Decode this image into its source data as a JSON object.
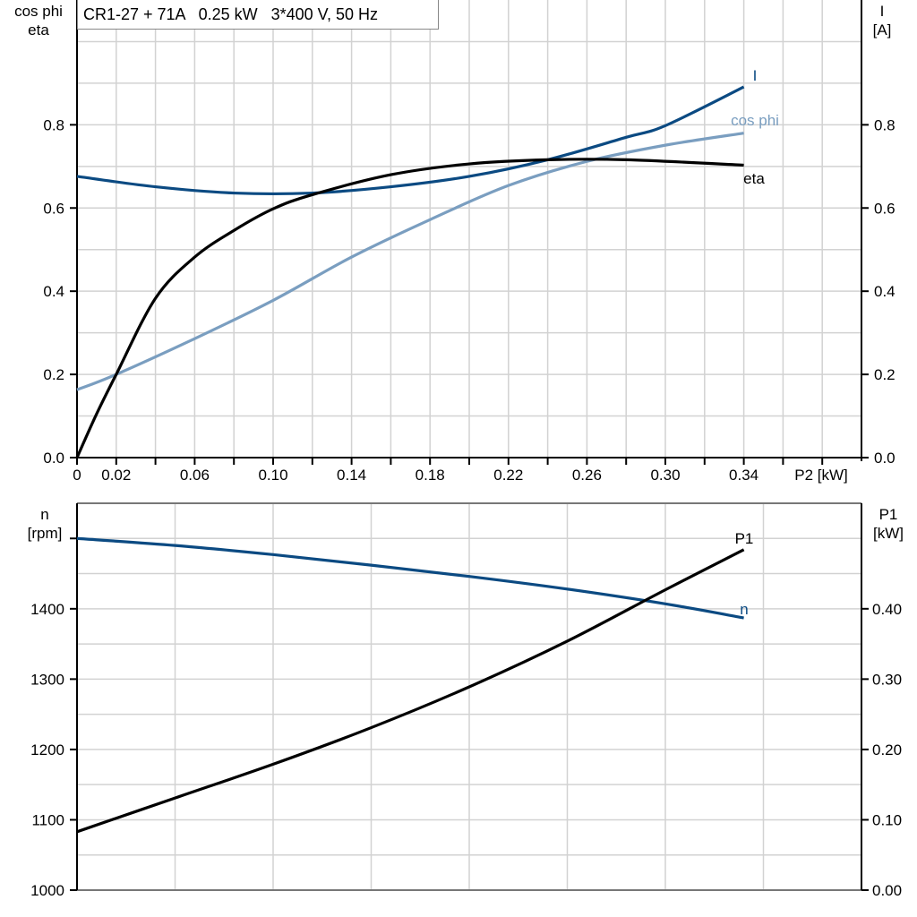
{
  "title": "CR1-27 + 71A   0.25 kW   3*400 V, 50 Hz",
  "chart_data": [
    {
      "type": "line",
      "x_label": "P2 [kW]",
      "y_left_label": [
        "cos phi",
        "eta"
      ],
      "y_right_label": [
        "I",
        "[A]"
      ],
      "xlim": [
        0,
        0.4
      ],
      "ylim": [
        0,
        1.1
      ],
      "x_tick_labels": [
        "0",
        "0.02",
        "0.06",
        "0.10",
        "0.14",
        "0.18",
        "0.22",
        "0.26",
        "0.30",
        "0.34"
      ],
      "y_left_tick_labels": [
        "0.0",
        "0.2",
        "0.4",
        "0.6",
        "0.8"
      ],
      "y_right_tick_labels": [
        "0.0",
        "0.2",
        "0.4",
        "0.6",
        "0.8"
      ],
      "grid": true,
      "series": [
        {
          "name": "I",
          "axis": "right",
          "color": "#0b4a82",
          "x": [
            0,
            0.04,
            0.08,
            0.12,
            0.16,
            0.2,
            0.24,
            0.28,
            0.3,
            0.34
          ],
          "y": [
            0.676,
            0.651,
            0.636,
            0.636,
            0.651,
            0.676,
            0.716,
            0.77,
            0.798,
            0.891
          ]
        },
        {
          "name": "cos phi",
          "axis": "left",
          "color": "#7a9ec0",
          "x": [
            0,
            0.02,
            0.06,
            0.1,
            0.14,
            0.18,
            0.22,
            0.26,
            0.3,
            0.34
          ],
          "y": [
            0.163,
            0.2,
            0.286,
            0.378,
            0.482,
            0.572,
            0.654,
            0.712,
            0.751,
            0.78
          ]
        },
        {
          "name": "eta",
          "axis": "left",
          "color": "#000000",
          "x": [
            0,
            0.01,
            0.02,
            0.04,
            0.06,
            0.08,
            0.1,
            0.12,
            0.16,
            0.2,
            0.24,
            0.28,
            0.34
          ],
          "y": [
            0,
            0.105,
            0.2,
            0.383,
            0.482,
            0.546,
            0.598,
            0.632,
            0.68,
            0.706,
            0.716,
            0.716,
            0.703
          ]
        }
      ]
    },
    {
      "type": "line",
      "y_left_label": [
        "n",
        "[rpm]"
      ],
      "y_right_label": [
        "P1",
        "[kW]"
      ],
      "xlim": [
        0,
        0.4
      ],
      "ylim_left": [
        1000,
        1550
      ],
      "ylim_right": [
        0,
        0.7
      ],
      "y_left_tick_labels": [
        "1000",
        "1100",
        "1200",
        "1300",
        "1400"
      ],
      "y_right_tick_labels": [
        "0.00",
        "0.10",
        "0.20",
        "0.30",
        "0.40"
      ],
      "grid": true,
      "series": [
        {
          "name": "n",
          "axis": "left",
          "color": "#0b4a82",
          "x": [
            0,
            0.05,
            0.1,
            0.15,
            0.2,
            0.25,
            0.3,
            0.34
          ],
          "y": [
            1500,
            1490,
            1477,
            1462,
            1446,
            1428,
            1407,
            1387
          ]
        },
        {
          "name": "P1",
          "axis": "right",
          "color": "#000000",
          "x": [
            0,
            0.05,
            0.1,
            0.15,
            0.2,
            0.25,
            0.3,
            0.34
          ],
          "y": [
            0.083,
            0.131,
            0.179,
            0.231,
            0.289,
            0.354,
            0.427,
            0.484
          ]
        }
      ]
    }
  ]
}
